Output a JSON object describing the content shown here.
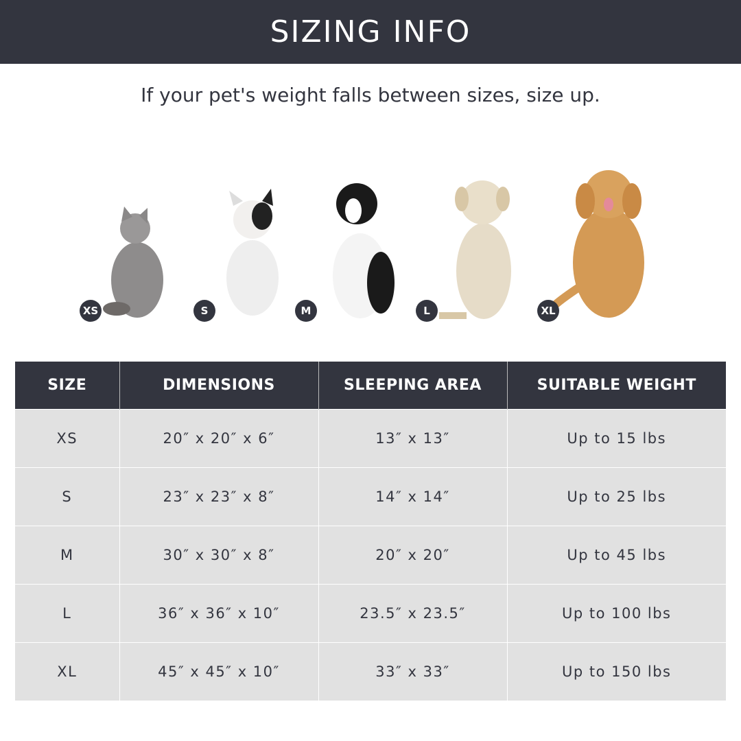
{
  "title": "SIZING INFO",
  "subtitle": "If your pet's weight falls between sizes, size up.",
  "pets": [
    {
      "size": "XS",
      "animal": "cat"
    },
    {
      "size": "S",
      "animal": "french-bulldog"
    },
    {
      "size": "M",
      "animal": "border-collie"
    },
    {
      "size": "L",
      "animal": "labrador"
    },
    {
      "size": "XL",
      "animal": "golden-retriever"
    }
  ],
  "table": {
    "headers": [
      "SIZE",
      "DIMENSIONS",
      "SLEEPING AREA",
      "SUITABLE WEIGHT"
    ],
    "rows": [
      [
        "XS",
        "20″ x 20″ x 6″",
        "13″ x 13″",
        "Up to 15 lbs"
      ],
      [
        "S",
        "23″ x 23″ x 8″",
        "14″ x 14″",
        "Up to 25 lbs"
      ],
      [
        "M",
        "30″ x 30″ x 8″",
        "20″ x 20″",
        "Up to 45 lbs"
      ],
      [
        "L",
        "36″ x 36″ x 10″",
        "23.5″ x 23.5″",
        "Up to 100 lbs"
      ],
      [
        "XL",
        "45″ x 45″ x 10″",
        "33″ x 33″",
        "Up to 150 lbs"
      ]
    ]
  },
  "colors": {
    "dark": "#33353f",
    "row": "#e1e1e1"
  }
}
